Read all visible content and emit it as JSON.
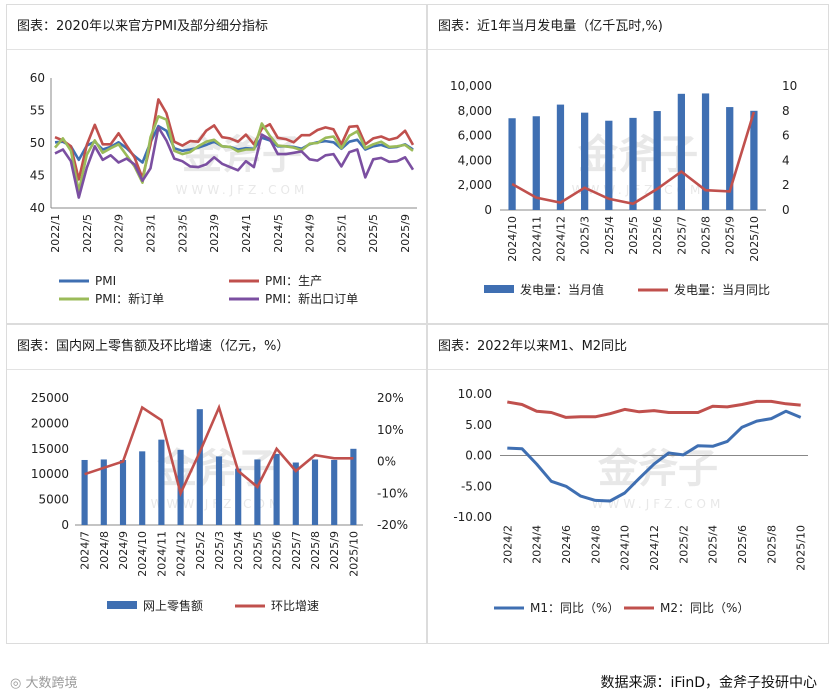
{
  "panels": [
    {
      "title": "图表：2020年以来官方PMI及部分细分指标"
    },
    {
      "title": "图表：近1年当月发电量（亿千瓦时,%)"
    },
    {
      "title": "图表：国内网上零售额及环比增速（亿元，%）"
    },
    {
      "title": "图表：2022年以来M1、M2同比"
    }
  ],
  "watermark": {
    "brand": "金斧子",
    "url": "WWW.JFZ.COM",
    "small": "胡雅雅儿 数据站"
  },
  "footer": {
    "source": "数据来源：iFinD，金斧子投研中心",
    "logo": "大数跨境"
  },
  "colors": {
    "blue": "#3f6fb2",
    "red": "#c0504d",
    "green": "#9bbb59",
    "purple": "#7b4fa1",
    "wm": "#e8e8e8"
  },
  "chart_data": [
    {
      "type": "line",
      "title": "图表：2020年以来官方PMI及部分细分指标",
      "x": [
        "2022/1",
        "2022/2",
        "2022/3",
        "2022/4",
        "2022/5",
        "2022/6",
        "2022/7",
        "2022/8",
        "2022/9",
        "2022/10",
        "2022/11",
        "2022/12",
        "2023/1",
        "2023/2",
        "2023/3",
        "2023/4",
        "2023/5",
        "2023/6",
        "2023/7",
        "2023/8",
        "2023/9",
        "2023/10",
        "2023/11",
        "2023/12",
        "2024/1",
        "2024/2",
        "2024/3",
        "2024/4",
        "2024/5",
        "2024/6",
        "2024/7",
        "2024/8",
        "2024/9",
        "2024/10",
        "2024/11",
        "2024/12",
        "2025/1",
        "2025/2",
        "2025/3",
        "2025/4",
        "2025/5",
        "2025/6",
        "2025/7",
        "2025/8",
        "2025/9",
        "2025/10"
      ],
      "xticks": [
        "2022/1",
        "2022/5",
        "2022/9",
        "2023/1",
        "2023/5",
        "2023/9",
        "2024/1",
        "2024/5",
        "2024/9",
        "2025/1",
        "2025/5",
        "2025/9"
      ],
      "ylim": [
        40,
        60
      ],
      "yticks": [
        "40",
        "45",
        "50",
        "55",
        "60"
      ],
      "series": [
        {
          "name": "PMI",
          "color": "#3f6fb2",
          "values": [
            50.1,
            50.2,
            49.5,
            47.4,
            49.6,
            50.2,
            49.0,
            49.4,
            50.1,
            49.2,
            48.0,
            47.0,
            50.1,
            52.6,
            51.9,
            49.2,
            48.8,
            49.0,
            49.3,
            49.7,
            50.2,
            49.5,
            49.4,
            49.0,
            49.2,
            49.1,
            50.8,
            50.4,
            49.5,
            49.5,
            49.4,
            49.1,
            49.8,
            50.1,
            50.3,
            50.1,
            49.1,
            50.2,
            50.5,
            49.0,
            49.5,
            49.7,
            49.3,
            49.4,
            49.8,
            49.0
          ]
        },
        {
          "name": "PMI：生产",
          "color": "#c0504d",
          "values": [
            50.9,
            50.4,
            49.5,
            44.4,
            49.7,
            52.8,
            49.8,
            49.8,
            51.5,
            49.6,
            47.8,
            44.6,
            49.8,
            56.7,
            54.6,
            50.2,
            49.6,
            50.3,
            50.2,
            51.9,
            52.7,
            50.9,
            50.7,
            50.2,
            51.3,
            49.8,
            52.2,
            52.9,
            50.8,
            50.6,
            50.1,
            51.2,
            51.2,
            52.0,
            52.4,
            52.1,
            49.8,
            52.5,
            52.6,
            49.8,
            50.7,
            51.0,
            50.5,
            50.8,
            51.9,
            49.7
          ]
        },
        {
          "name": "PMI：新订单",
          "color": "#9bbb59",
          "values": [
            49.3,
            50.7,
            48.8,
            42.6,
            48.2,
            50.4,
            48.5,
            49.2,
            49.8,
            48.1,
            46.4,
            43.9,
            50.9,
            54.1,
            53.6,
            48.8,
            48.3,
            48.6,
            49.5,
            50.2,
            50.5,
            49.5,
            49.4,
            48.7,
            49.0,
            49.0,
            53.0,
            51.1,
            49.6,
            49.5,
            49.3,
            48.9,
            49.9,
            50.0,
            50.8,
            51.0,
            49.2,
            51.1,
            51.8,
            49.2,
            49.8,
            50.2,
            49.4,
            49.5,
            49.7,
            48.8
          ]
        },
        {
          "name": "PMI：新出口订单",
          "color": "#7b4fa1",
          "values": [
            48.4,
            49.0,
            47.2,
            41.6,
            46.2,
            49.5,
            47.4,
            48.1,
            47.0,
            47.6,
            46.7,
            44.2,
            46.1,
            52.4,
            50.4,
            47.6,
            47.2,
            46.4,
            46.3,
            46.7,
            47.8,
            46.8,
            46.3,
            45.8,
            47.2,
            46.3,
            51.3,
            50.6,
            48.3,
            48.3,
            48.5,
            48.7,
            47.5,
            47.3,
            48.1,
            48.3,
            46.4,
            48.6,
            49.0,
            44.7,
            47.5,
            47.7,
            47.1,
            47.2,
            47.8,
            45.9
          ]
        }
      ]
    },
    {
      "type": "bar",
      "title": "图表：近1年当月发电量（亿千瓦时,%)",
      "categories": [
        "2024/10",
        "2024/11",
        "2024/12",
        "2025/3",
        "2025/4",
        "2025/5",
        "2025/6",
        "2025/7",
        "2025/8",
        "2025/9",
        "2025/10"
      ],
      "series": [
        {
          "name": "发电量：当月值",
          "color": "#3f6fb2",
          "axis": "left",
          "values": [
            7400,
            7560,
            8500,
            7850,
            7200,
            7430,
            7980,
            9370,
            9400,
            8300,
            8000
          ]
        },
        {
          "name": "发电量：当月同比",
          "color": "#c0504d",
          "axis": "right",
          "values": [
            2.1,
            1.0,
            0.6,
            1.8,
            0.9,
            0.5,
            1.7,
            3.1,
            1.6,
            1.5,
            7.9
          ]
        }
      ],
      "ylim": [
        0,
        10000
      ],
      "yticks": [
        "0",
        "2,000",
        "4,000",
        "6,000",
        "8,000",
        "10,000"
      ],
      "y2lim": [
        0,
        10
      ],
      "y2ticks": [
        "0",
        "2",
        "4",
        "6",
        "8",
        "10"
      ]
    },
    {
      "type": "bar",
      "title": "图表：国内网上零售额及环比增速（亿元，%）",
      "categories": [
        "2024/7",
        "2024/8",
        "2024/9",
        "2024/10",
        "2024/11",
        "2024/12",
        "2025/2",
        "2025/3",
        "2025/4",
        "2025/5",
        "2025/6",
        "2025/7",
        "2025/8",
        "2025/9",
        "2025/10"
      ],
      "series": [
        {
          "name": "网上零售额",
          "color": "#3f6fb2",
          "axis": "left",
          "values": [
            12800,
            12900,
            12800,
            14500,
            16800,
            14800,
            22800,
            13500,
            11100,
            12900,
            14000,
            12300,
            12900,
            12800,
            15000
          ]
        },
        {
          "name": "环比增速",
          "color": "#c0504d",
          "axis": "right",
          "values": [
            -4,
            -2,
            0,
            17,
            13,
            -10,
            3,
            17,
            -3,
            -8,
            4,
            -3,
            2,
            1,
            1
          ]
        }
      ],
      "ylim": [
        0,
        25000
      ],
      "yticks": [
        "0",
        "5000",
        "10000",
        "15000",
        "20000",
        "25000"
      ],
      "y2lim": [
        -20,
        20
      ],
      "y2ticks": [
        "-20%",
        "-10%",
        "0%",
        "10%",
        "20%"
      ]
    },
    {
      "type": "line",
      "title": "图表：2022年以来M1、M2同比",
      "x": [
        "2024/2",
        "2024/3",
        "2024/4",
        "2024/5",
        "2024/6",
        "2024/7",
        "2024/8",
        "2024/9",
        "2024/10",
        "2024/11",
        "2024/12",
        "2025/1",
        "2025/2",
        "2025/3",
        "2025/4",
        "2025/5",
        "2025/6",
        "2025/7",
        "2025/8",
        "2025/9",
        "2025/10"
      ],
      "xticks": [
        "2024/2",
        "2024/4",
        "2024/6",
        "2024/8",
        "2024/10",
        "2024/12",
        "2025/2",
        "2025/4",
        "2025/6",
        "2025/8",
        "2025/10"
      ],
      "ylim": [
        -10,
        10
      ],
      "yticks": [
        "-10.00",
        "-5.00",
        "0.00",
        "5.00",
        "10.00"
      ],
      "series": [
        {
          "name": "M1：同比（%）",
          "color": "#3f6fb2",
          "values": [
            1.2,
            1.1,
            -1.4,
            -4.2,
            -5.0,
            -6.6,
            -7.3,
            -7.4,
            -6.1,
            -3.7,
            -1.4,
            0.4,
            0.1,
            1.6,
            1.5,
            2.3,
            4.6,
            5.6,
            6.0,
            7.2,
            6.2
          ]
        },
        {
          "name": "M2：同比（%）",
          "color": "#c0504d",
          "values": [
            8.7,
            8.3,
            7.2,
            7.0,
            6.2,
            6.3,
            6.3,
            6.8,
            7.5,
            7.1,
            7.3,
            7.0,
            7.0,
            7.0,
            8.0,
            7.9,
            8.3,
            8.8,
            8.8,
            8.4,
            8.2
          ]
        }
      ]
    }
  ]
}
